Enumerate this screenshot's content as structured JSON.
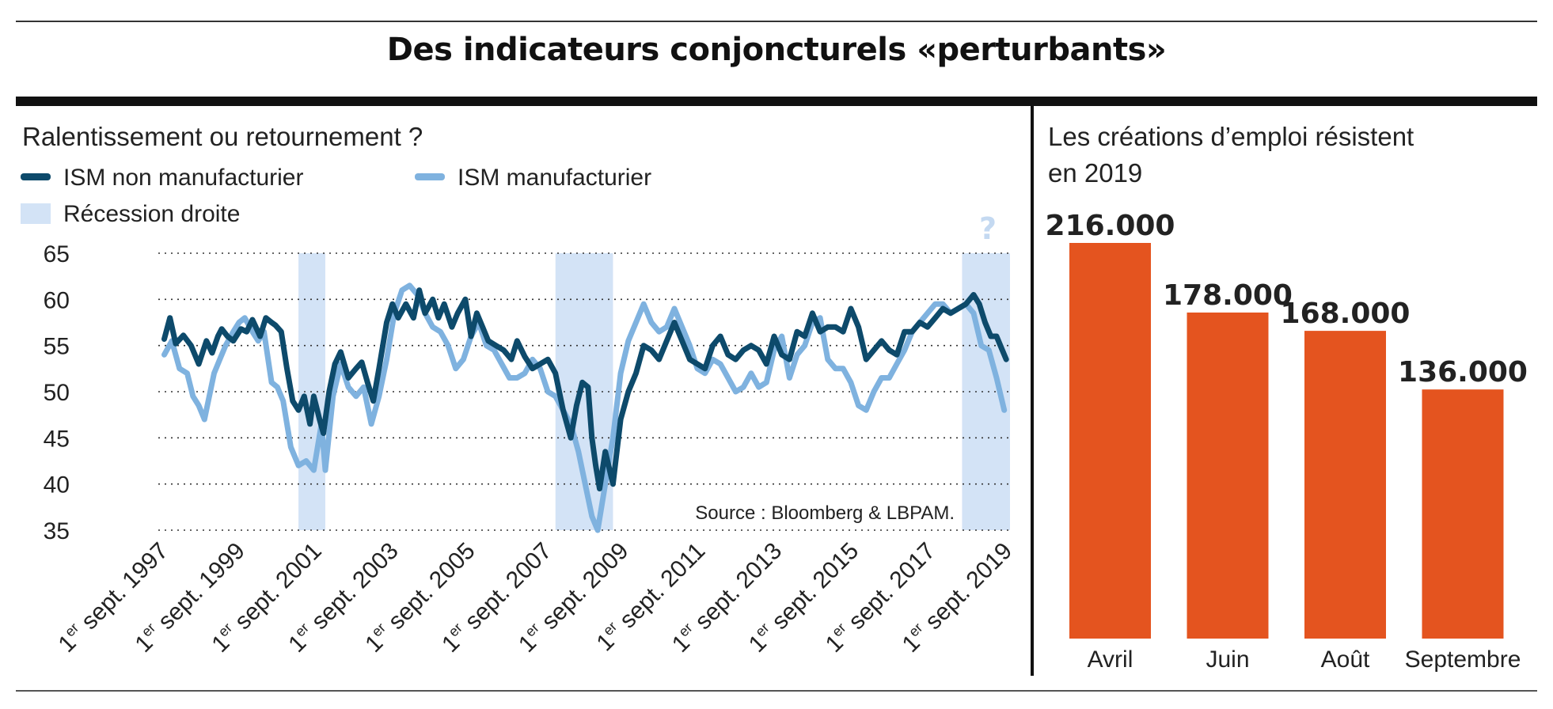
{
  "title": "Des indicateurs conjoncturels «perturbants»",
  "colors": {
    "dark_line": "#0d4a6b",
    "light_line": "#7fb2df",
    "recession": "#d3e3f6",
    "bar": "#e4541f",
    "grid": "#333333"
  },
  "chart_data": [
    {
      "type": "line",
      "title": "Ralentissement ou retournement ?",
      "legend": [
        {
          "name": "ISM non manufacturier",
          "kind": "line",
          "color": "#0d4a6b"
        },
        {
          "name": "ISM manufacturier",
          "kind": "line",
          "color": "#7fb2df"
        },
        {
          "name": "Récession droite",
          "kind": "area",
          "color": "#d3e3f6"
        }
      ],
      "ylim": [
        35,
        65
      ],
      "yticks": [
        35,
        40,
        45,
        50,
        55,
        60,
        65
      ],
      "xlim": [
        1997.67,
        2019.75
      ],
      "xticks": [
        {
          "x": 1997.67,
          "sup": "er",
          "label": "sept. 1997",
          "prefix": "1"
        },
        {
          "x": 1999.67,
          "sup": "er",
          "label": "sept. 1999",
          "prefix": "1"
        },
        {
          "x": 2001.67,
          "sup": "er",
          "label": "sept. 2001",
          "prefix": "1"
        },
        {
          "x": 2003.67,
          "sup": "er",
          "label": "sept. 2003",
          "prefix": "1"
        },
        {
          "x": 2005.67,
          "sup": "er",
          "label": "sept. 2005",
          "prefix": "1"
        },
        {
          "x": 2007.67,
          "sup": "er",
          "label": "sept. 2007",
          "prefix": "1"
        },
        {
          "x": 2009.67,
          "sup": "er",
          "label": "sept. 2009",
          "prefix": "1"
        },
        {
          "x": 2011.67,
          "sup": "er",
          "label": "sept. 2011",
          "prefix": "1"
        },
        {
          "x": 2013.67,
          "sup": "er",
          "label": "sept. 2013",
          "prefix": "1"
        },
        {
          "x": 2015.67,
          "sup": "er",
          "label": "sept. 2015",
          "prefix": "1"
        },
        {
          "x": 2017.67,
          "sup": "er",
          "label": "sept. 2017",
          "prefix": "1"
        },
        {
          "x": 2019.67,
          "sup": "er",
          "label": "sept. 2019",
          "prefix": "1"
        }
      ],
      "recessions": [
        [
          2001.2,
          2001.9
        ],
        [
          2007.9,
          2009.4
        ],
        [
          2018.5,
          2019.75
        ]
      ],
      "recession_mark": "?",
      "source": "Source : Bloomberg & LBPAM.",
      "grid": "dotted horizontal",
      "series": [
        {
          "name": "ISM non manufacturier",
          "x": [
            1997.7,
            1997.85,
            1998.0,
            1998.2,
            1998.4,
            1998.6,
            1998.8,
            1998.95,
            1999.1,
            1999.2,
            1999.35,
            1999.5,
            1999.7,
            1999.85,
            2000.0,
            2000.2,
            2000.35,
            2000.5,
            2000.6,
            2000.75,
            2000.9,
            2001.05,
            2001.2,
            2001.35,
            2001.5,
            2001.6,
            2001.75,
            2001.85,
            2002.0,
            2002.15,
            2002.3,
            2002.5,
            2002.7,
            2002.85,
            2003.0,
            2003.15,
            2003.3,
            2003.5,
            2003.65,
            2003.8,
            2004.0,
            2004.2,
            2004.35,
            2004.5,
            2004.7,
            2004.85,
            2005.0,
            2005.2,
            2005.35,
            2005.55,
            2005.7,
            2005.85,
            2006.0,
            2006.15,
            2006.35,
            2006.55,
            2006.75,
            2006.9,
            2007.1,
            2007.3,
            2007.5,
            2007.7,
            2007.9,
            2008.1,
            2008.3,
            2008.45,
            2008.6,
            2008.75,
            2008.85,
            2008.95,
            2009.05,
            2009.2,
            2009.4,
            2009.6,
            2009.8,
            2010.0,
            2010.2,
            2010.4,
            2010.6,
            2010.8,
            2011.0,
            2011.2,
            2011.4,
            2011.6,
            2011.8,
            2012.0,
            2012.2,
            2012.4,
            2012.6,
            2012.8,
            2013.0,
            2013.2,
            2013.4,
            2013.6,
            2013.8,
            2014.0,
            2014.2,
            2014.4,
            2014.6,
            2014.8,
            2015.0,
            2015.2,
            2015.4,
            2015.6,
            2015.8,
            2016.0,
            2016.2,
            2016.4,
            2016.6,
            2016.8,
            2017.0,
            2017.2,
            2017.4,
            2017.6,
            2017.8,
            2018.0,
            2018.2,
            2018.4,
            2018.6,
            2018.8,
            2018.95,
            2019.1,
            2019.25,
            2019.4,
            2019.55,
            2019.65
          ],
          "values": [
            55.7,
            58.0,
            55.2,
            56.1,
            55.0,
            53.0,
            55.5,
            54.2,
            56.0,
            56.8,
            56.0,
            55.5,
            56.8,
            56.5,
            57.8,
            56.0,
            58.0,
            57.5,
            57.2,
            56.5,
            52.5,
            49.0,
            48.0,
            49.5,
            46.5,
            49.5,
            47.0,
            45.5,
            50.0,
            53.0,
            54.3,
            51.5,
            52.5,
            53.2,
            51.0,
            49.0,
            52.5,
            57.5,
            59.5,
            58.0,
            59.5,
            58.0,
            61.0,
            58.5,
            60.0,
            58.0,
            59.5,
            57.0,
            58.5,
            60.0,
            56.0,
            58.5,
            57.0,
            55.5,
            55.0,
            54.5,
            53.5,
            55.5,
            53.8,
            52.5,
            53.0,
            53.5,
            52.0,
            48.0,
            45.0,
            48.5,
            51.0,
            50.5,
            45.0,
            42.0,
            39.5,
            43.5,
            40.0,
            47.0,
            50.0,
            52.0,
            55.0,
            54.5,
            53.5,
            55.5,
            57.5,
            55.5,
            53.5,
            53.0,
            52.5,
            55.0,
            56.0,
            54.0,
            53.5,
            54.5,
            55.0,
            54.5,
            53.0,
            56.0,
            54.0,
            53.5,
            56.5,
            56.0,
            58.5,
            56.5,
            57.0,
            57.0,
            56.5,
            59.0,
            57.0,
            53.5,
            54.5,
            55.5,
            54.5,
            54.0,
            56.5,
            56.5,
            57.5,
            57.0,
            58.0,
            59.0,
            58.5,
            59.0,
            59.5,
            60.5,
            59.5,
            57.5,
            56.0,
            56.0,
            54.5,
            53.5
          ]
        },
        {
          "name": "ISM manufacturier",
          "x": [
            1997.7,
            1997.9,
            1998.1,
            1998.3,
            1998.45,
            1998.6,
            1998.75,
            1998.9,
            1999.0,
            1999.15,
            1999.3,
            1999.5,
            1999.65,
            1999.8,
            2000.0,
            2000.15,
            2000.3,
            2000.5,
            2000.65,
            2000.8,
            2001.0,
            2001.2,
            2001.4,
            2001.6,
            2001.8,
            2001.9,
            2002.1,
            2002.3,
            2002.5,
            2002.7,
            2002.9,
            2003.1,
            2003.3,
            2003.5,
            2003.7,
            2003.9,
            2004.1,
            2004.3,
            2004.5,
            2004.7,
            2004.9,
            2005.1,
            2005.3,
            2005.5,
            2005.7,
            2005.9,
            2006.1,
            2006.3,
            2006.5,
            2006.7,
            2006.9,
            2007.1,
            2007.3,
            2007.5,
            2007.7,
            2007.9,
            2008.1,
            2008.3,
            2008.5,
            2008.7,
            2008.85,
            2009.0,
            2009.2,
            2009.4,
            2009.6,
            2009.8,
            2010.0,
            2010.2,
            2010.4,
            2010.6,
            2010.8,
            2011.0,
            2011.2,
            2011.4,
            2011.6,
            2011.8,
            2012.0,
            2012.2,
            2012.4,
            2012.6,
            2012.8,
            2013.0,
            2013.2,
            2013.4,
            2013.6,
            2013.8,
            2014.0,
            2014.2,
            2014.4,
            2014.6,
            2014.8,
            2015.0,
            2015.2,
            2015.4,
            2015.6,
            2015.8,
            2016.0,
            2016.2,
            2016.4,
            2016.6,
            2016.8,
            2017.0,
            2017.2,
            2017.4,
            2017.6,
            2017.8,
            2018.0,
            2018.2,
            2018.4,
            2018.6,
            2018.8,
            2019.0,
            2019.2,
            2019.4,
            2019.6
          ],
          "values": [
            54.0,
            55.5,
            52.5,
            52.0,
            49.5,
            48.5,
            47.0,
            50.0,
            52.0,
            53.5,
            55.0,
            56.5,
            57.5,
            58.0,
            56.5,
            55.5,
            56.5,
            51.0,
            50.5,
            49.0,
            44.0,
            42.0,
            42.5,
            41.5,
            46.5,
            41.5,
            49.5,
            53.0,
            50.5,
            49.5,
            50.5,
            46.5,
            49.5,
            53.5,
            58.5,
            61.0,
            61.5,
            60.5,
            58.5,
            57.0,
            56.5,
            55.0,
            52.5,
            53.5,
            56.0,
            57.5,
            55.0,
            54.5,
            53.0,
            51.5,
            51.5,
            52.0,
            53.5,
            52.5,
            50.0,
            49.5,
            48.0,
            46.5,
            43.5,
            39.5,
            36.5,
            35.0,
            40.0,
            45.0,
            52.0,
            55.5,
            57.5,
            59.5,
            57.5,
            56.5,
            57.0,
            59.0,
            57.0,
            55.0,
            52.5,
            52.0,
            53.5,
            53.0,
            51.5,
            50.0,
            50.5,
            52.0,
            50.5,
            51.0,
            54.5,
            56.0,
            51.5,
            54.0,
            55.0,
            57.5,
            58.0,
            53.5,
            52.5,
            52.5,
            51.0,
            48.5,
            48.0,
            50.0,
            51.5,
            51.5,
            53.0,
            54.5,
            56.5,
            57.5,
            58.5,
            59.5,
            59.5,
            58.5,
            59.0,
            59.5,
            58.5,
            55.0,
            54.5,
            51.5,
            48.0
          ]
        }
      ]
    },
    {
      "type": "bar",
      "title": "Les créations d’emploi résistent en 2019",
      "categories": [
        "Avril",
        "Juin",
        "Août",
        "Septembre"
      ],
      "values": [
        216000,
        178000,
        168000,
        136000
      ],
      "value_labels": [
        "216.000",
        "178.000",
        "168.000",
        "136.000"
      ],
      "ylim": [
        0,
        216000
      ]
    }
  ]
}
